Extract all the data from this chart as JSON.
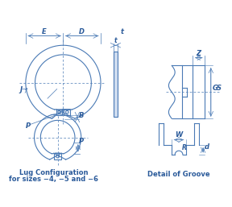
{
  "bg_color": "#ffffff",
  "line_color": "#4a7ab5",
  "text_color": "#2a5a9a",
  "title1": "Lug Configuration",
  "title2": "for sizes −4, −5 and −6",
  "title3": "Detail of Groove",
  "labels": {
    "E": "E",
    "D": "D",
    "t": "t",
    "J": "J",
    "P": "P",
    "B": "B",
    "Z": "Z",
    "G": "G",
    "S": "S",
    "W": "W",
    "R": "R",
    "d": "d"
  }
}
